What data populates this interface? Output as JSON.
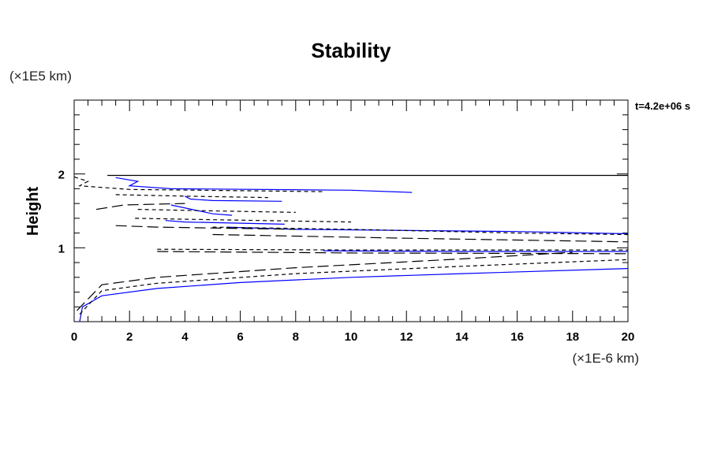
{
  "chart_data": {
    "type": "line",
    "title": "Stability",
    "ylabel": "Height",
    "y_unit": "(×1E5 km)",
    "x_unit": "(×1E-6 km)",
    "annotation": "t=4.2e+06 s",
    "xlim": [
      0,
      20
    ],
    "ylim": [
      0,
      3
    ],
    "xticks": [
      0,
      2,
      4,
      6,
      8,
      10,
      12,
      14,
      16,
      18,
      20
    ],
    "yticks": [
      1,
      2
    ],
    "grid": false,
    "colors": {
      "blue": "#0000ff",
      "black": "#000000"
    },
    "series": [
      {
        "style": "solid",
        "color": "#000000",
        "points": [
          [
            1.2,
            1.98
          ],
          [
            20,
            1.98
          ]
        ]
      },
      {
        "style": "solid",
        "color": "#0000ff",
        "points": [
          [
            0.2,
            0.0
          ],
          [
            0.3,
            0.2
          ],
          [
            1,
            0.35
          ],
          [
            3,
            0.45
          ],
          [
            6,
            0.53
          ],
          [
            10,
            0.6
          ],
          [
            14,
            0.65
          ],
          [
            20,
            0.72
          ]
        ]
      },
      {
        "style": "dashed",
        "color": "#000000",
        "points": [
          [
            0.2,
            0.1
          ],
          [
            1,
            0.42
          ],
          [
            3,
            0.52
          ],
          [
            8,
            0.65
          ],
          [
            14,
            0.75
          ],
          [
            20,
            0.84
          ]
        ]
      },
      {
        "style": "longdash",
        "color": "#000000",
        "points": [
          [
            0.1,
            0.15
          ],
          [
            1,
            0.5
          ],
          [
            3,
            0.6
          ],
          [
            8,
            0.73
          ],
          [
            14,
            0.85
          ],
          [
            18,
            0.94
          ]
        ]
      },
      {
        "style": "solid",
        "color": "#0000ff",
        "points": [
          [
            1.5,
            1.95
          ],
          [
            2.3,
            1.9
          ],
          [
            2.0,
            1.84
          ],
          [
            3.5,
            1.8
          ],
          [
            10,
            1.78
          ],
          [
            12.2,
            1.75
          ]
        ]
      },
      {
        "style": "solid",
        "color": "#0000ff",
        "points": [
          [
            4.0,
            1.7
          ],
          [
            4.2,
            1.66
          ],
          [
            5,
            1.64
          ],
          [
            7.5,
            1.63
          ]
        ]
      },
      {
        "style": "solid",
        "color": "#0000ff",
        "points": [
          [
            3.5,
            1.58
          ],
          [
            4.5,
            1.5
          ],
          [
            5,
            1.46
          ],
          [
            5.7,
            1.44
          ]
        ]
      },
      {
        "style": "solid",
        "color": "#0000ff",
        "points": [
          [
            3.3,
            1.37
          ],
          [
            4,
            1.35
          ],
          [
            7.6,
            1.32
          ]
        ]
      },
      {
        "style": "solid",
        "color": "#0000ff",
        "points": [
          [
            5.5,
            1.28
          ],
          [
            8,
            1.25
          ],
          [
            16,
            1.22
          ],
          [
            20,
            1.19
          ]
        ]
      },
      {
        "style": "solid",
        "color": "#0000ff",
        "points": [
          [
            9,
            0.96
          ],
          [
            14,
            0.95
          ],
          [
            20,
            0.95
          ]
        ]
      },
      {
        "style": "dashed",
        "color": "#000000",
        "points": [
          [
            0,
            1.96
          ],
          [
            0.5,
            1.9
          ],
          [
            0.2,
            1.84
          ],
          [
            2,
            1.79
          ],
          [
            9,
            1.76
          ]
        ]
      },
      {
        "style": "dashed",
        "color": "#000000",
        "points": [
          [
            1.5,
            1.72
          ],
          [
            4,
            1.7
          ],
          [
            7,
            1.68
          ]
        ]
      },
      {
        "style": "dashed",
        "color": "#000000",
        "points": [
          [
            2.3,
            1.52
          ],
          [
            5,
            1.5
          ],
          [
            8,
            1.48
          ]
        ]
      },
      {
        "style": "dashed",
        "color": "#000000",
        "points": [
          [
            2.2,
            1.4
          ],
          [
            5,
            1.38
          ],
          [
            10,
            1.35
          ]
        ]
      },
      {
        "style": "dashed",
        "color": "#000000",
        "points": [
          [
            5,
            1.28
          ],
          [
            10,
            1.25
          ],
          [
            16,
            1.2
          ],
          [
            20,
            1.18
          ]
        ]
      },
      {
        "style": "dashed",
        "color": "#000000",
        "points": [
          [
            3,
            0.98
          ],
          [
            10,
            0.97
          ],
          [
            20,
            0.97
          ]
        ]
      },
      {
        "style": "longdash",
        "color": "#000000",
        "points": [
          [
            0.8,
            1.52
          ],
          [
            1.8,
            1.58
          ],
          [
            4,
            1.6
          ]
        ]
      },
      {
        "style": "longdash",
        "color": "#000000",
        "points": [
          [
            1.5,
            1.3
          ],
          [
            3,
            1.28
          ],
          [
            8,
            1.25
          ]
        ]
      },
      {
        "style": "longdash",
        "color": "#000000",
        "points": [
          [
            5,
            1.18
          ],
          [
            12,
            1.13
          ],
          [
            20,
            1.08
          ]
        ]
      },
      {
        "style": "longdash",
        "color": "#000000",
        "points": [
          [
            3,
            0.95
          ],
          [
            10,
            0.93
          ],
          [
            20,
            0.92
          ]
        ]
      }
    ]
  }
}
